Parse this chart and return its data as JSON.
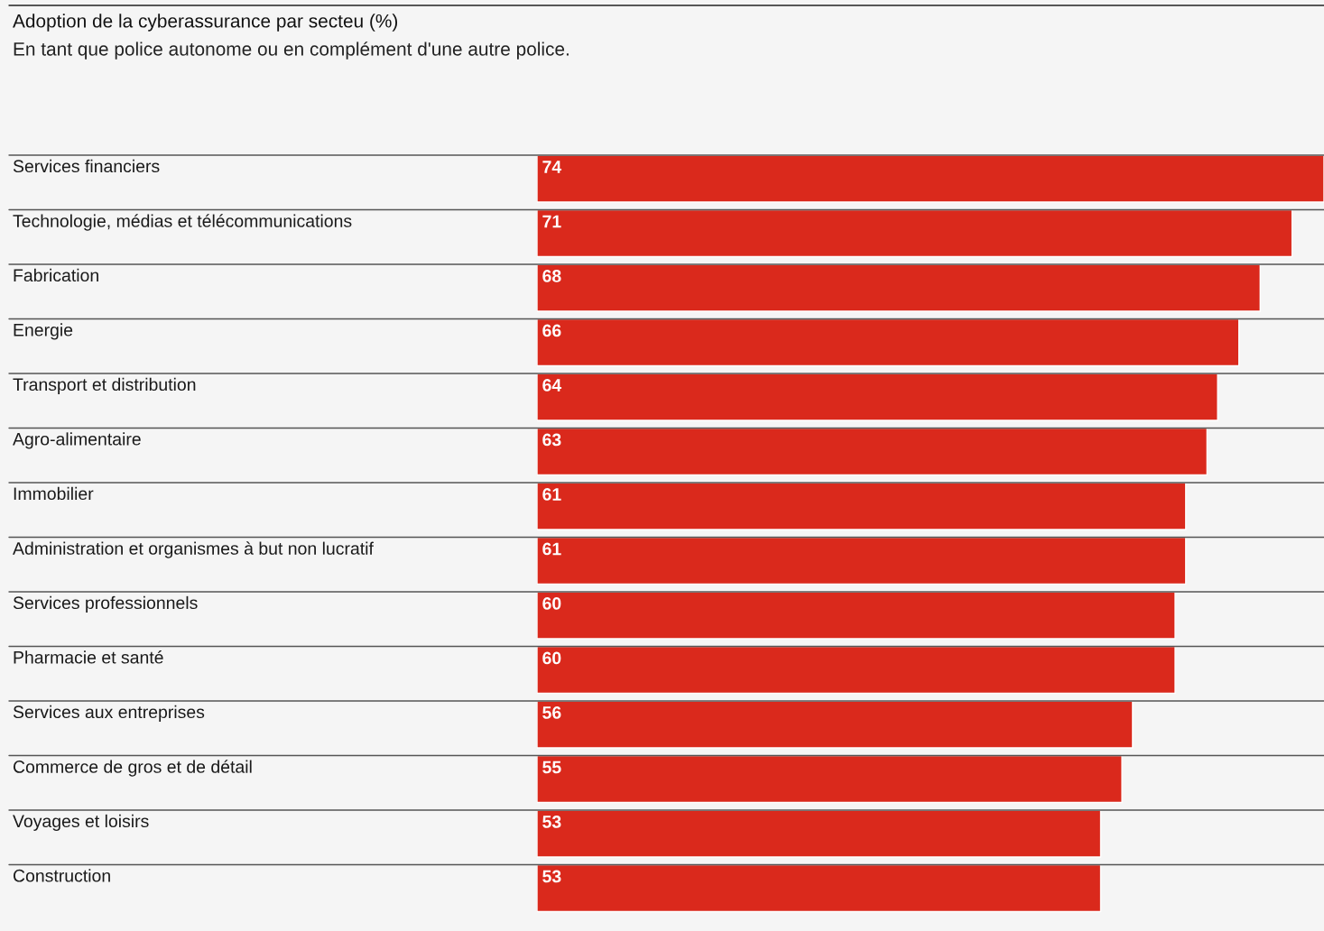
{
  "chart_data": {
    "type": "bar",
    "orientation": "horizontal",
    "title": "Adoption de la cyberassurance par secteu (%)",
    "subtitle": "En tant que police autonome ou en complément d'une autre police.",
    "categories": [
      "Services financiers",
      "Technologie, médias et télécommunications",
      "Fabrication",
      "Energie",
      "Transport et distribution",
      "Agro-alimentaire",
      "Immobilier",
      "Administration et organismes à but non lucratif",
      "Services professionnels",
      "Pharmacie et santé",
      "Services aux entreprises",
      "Commerce de gros et de détail",
      "Voyages et loisirs",
      "Construction"
    ],
    "values": [
      74,
      71,
      68,
      66,
      64,
      63,
      61,
      61,
      60,
      60,
      56,
      55,
      53,
      53
    ],
    "color": "#da291c",
    "data_labels": true
  }
}
